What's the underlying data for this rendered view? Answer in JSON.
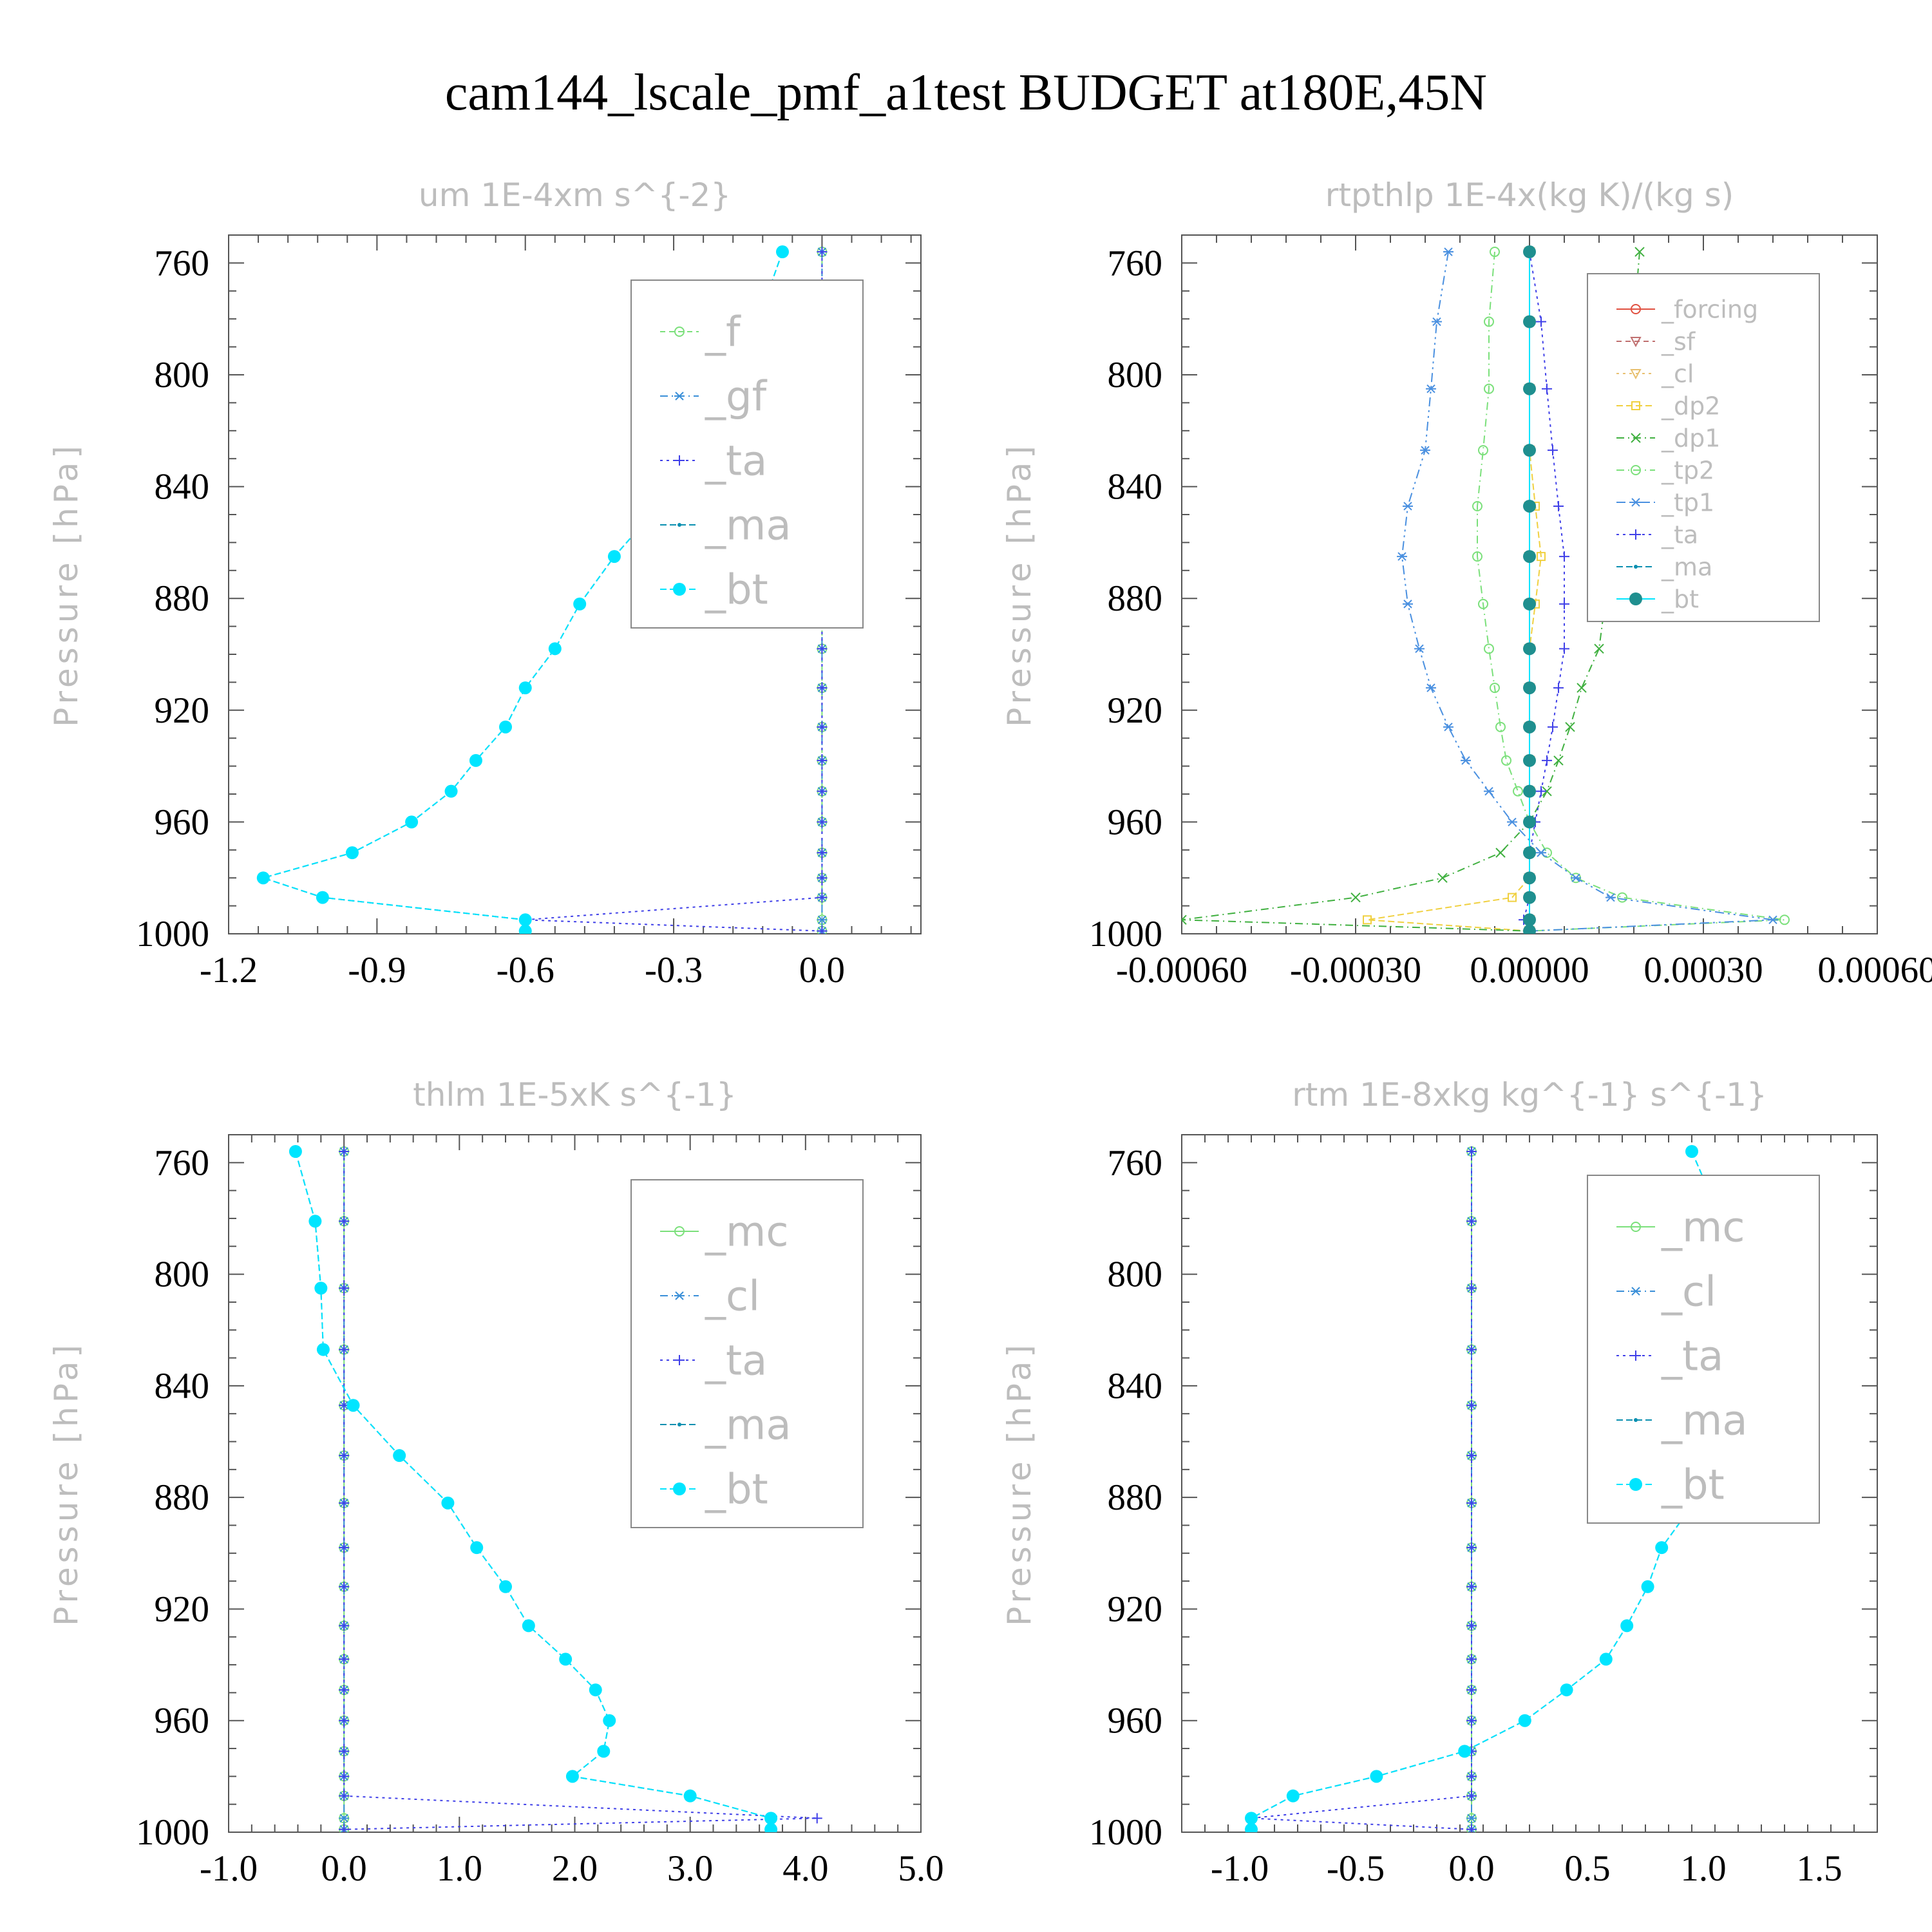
{
  "figure_title": "cam144_lscale_pmf_a1test  BUDGET at180E,45N",
  "colors": {
    "_f": "#7be07b",
    "_gf": "#3a8fd8",
    "_ta": "#4040e8",
    "_ma": "#0a8fb0",
    "_bt": "#00e5ff",
    "_mc": "#7be07b",
    "_cl": "#3a8fd8",
    "_forcing": "#e05040",
    "_sf": "#c07070",
    "_cl_rt": "#e8c070",
    "_dp2": "#f0d040",
    "_dp1": "#40b040",
    "_tp2": "#7be07b",
    "_tp1": "#4a90e0"
  },
  "chart_data": [
    {
      "type": "line",
      "title": "um   1E-4xm s^{-2}",
      "xlabel": "",
      "ylabel": "Pressure [hPa]",
      "xlim": [
        -1.2,
        0.2
      ],
      "ylim": [
        1000,
        750
      ],
      "xticks": [
        -1.2,
        -0.9,
        -0.6,
        -0.3,
        0.0
      ],
      "xtick_labels": [
        "-1.2",
        "-0.9",
        "-0.6",
        "-0.3",
        "0.0"
      ],
      "yticks": [
        760,
        800,
        840,
        880,
        920,
        960,
        1000
      ],
      "ytick_labels": [
        "760",
        "800",
        "840",
        "880",
        "920",
        "960",
        "1000"
      ],
      "legend_position": "top-right",
      "legend_font": 64,
      "pressure": [
        756,
        781,
        805,
        827,
        847,
        865,
        882,
        898,
        912,
        926,
        938,
        949,
        960,
        971,
        980,
        987,
        995,
        999
      ],
      "series": [
        {
          "name": "_f",
          "color_key": "_f",
          "values": [
            0,
            0,
            0,
            0,
            0,
            0,
            0,
            0,
            0,
            0,
            0,
            0,
            0,
            0,
            0,
            0,
            0,
            0
          ],
          "marker": "circle",
          "dash": "8 6"
        },
        {
          "name": "_gf",
          "color_key": "_gf",
          "values": [
            0,
            0,
            0,
            0,
            0,
            0,
            0,
            0,
            0,
            0,
            0,
            0,
            0,
            0,
            0,
            0,
            0,
            0
          ],
          "marker": "star",
          "dash": "12 6 2 6"
        },
        {
          "name": "_ta",
          "color_key": "_ta",
          "values": [
            0,
            0,
            0,
            0,
            0,
            0,
            0,
            0,
            0,
            0,
            0,
            0,
            0,
            0,
            0,
            0,
            -0.6,
            0
          ],
          "marker": "plus",
          "dash": "4 6"
        },
        {
          "name": "_ma",
          "color_key": "_ma",
          "values": [
            -0.08,
            -0.13,
            -0.18,
            -0.24,
            -0.33,
            -0.42,
            -0.49,
            -0.54,
            -0.6,
            -0.64,
            -0.7,
            -0.75,
            -0.83,
            -0.95,
            -1.13,
            -1.01,
            -0.6,
            -0.6
          ],
          "marker": "dot",
          "dash": "10 5"
        },
        {
          "name": "_bt",
          "color_key": "_bt",
          "values": [
            -0.08,
            -0.13,
            -0.18,
            -0.24,
            -0.33,
            -0.42,
            -0.49,
            -0.54,
            -0.6,
            -0.64,
            -0.7,
            -0.75,
            -0.83,
            -0.95,
            -1.13,
            -1.01,
            -0.6,
            -0.6
          ],
          "marker": "bigdot",
          "dash": "10 5"
        }
      ]
    },
    {
      "type": "line",
      "title": "rtpthlp   1E-4x(kg K)/(kg s)",
      "xlabel": "",
      "ylabel": "Pressure [hPa]",
      "xlim": [
        -0.0006,
        0.0006
      ],
      "ylim": [
        1000,
        750
      ],
      "xticks": [
        -0.0006,
        -0.0003,
        0.0,
        0.0003,
        0.0006
      ],
      "xtick_labels": [
        "-0.00060",
        "-0.00030",
        "0.00000",
        "0.00030",
        "0.00060"
      ],
      "yticks": [
        760,
        800,
        840,
        880,
        920,
        960,
        1000
      ],
      "ytick_labels": [
        "760",
        "800",
        "840",
        "880",
        "920",
        "960",
        "1000"
      ],
      "legend_position": "top-right",
      "legend_font": 38,
      "pressure": [
        756,
        781,
        805,
        827,
        847,
        865,
        882,
        898,
        912,
        926,
        938,
        949,
        960,
        971,
        980,
        987,
        995,
        999
      ],
      "series": [
        {
          "name": "_forcing",
          "color_key": "_forcing",
          "values": [
            0,
            0,
            0,
            0,
            0,
            0,
            0,
            0,
            0,
            0,
            0,
            0,
            0,
            0,
            0,
            0,
            0,
            0
          ],
          "marker": "circle",
          "dash": ""
        },
        {
          "name": "_sf",
          "color_key": "_sf",
          "values": [
            0,
            0,
            0,
            0,
            0,
            0,
            0,
            0,
            0,
            0,
            0,
            0,
            0,
            0,
            0,
            0,
            0,
            0
          ],
          "marker": "tri",
          "dash": "8 6"
        },
        {
          "name": "_cl",
          "color_key": "_cl_rt",
          "values": [
            0,
            0,
            0,
            0,
            0,
            0,
            0,
            0,
            0,
            0,
            0,
            0,
            0,
            0,
            0,
            0,
            0,
            0
          ],
          "marker": "tri",
          "dash": "4 6"
        },
        {
          "name": "_dp2",
          "color_key": "_dp2",
          "values": [
            0,
            0,
            0,
            0,
            1e-05,
            2e-05,
            1e-05,
            0,
            0,
            0,
            0,
            0,
            0,
            0,
            0,
            -3e-05,
            -0.00028,
            0
          ],
          "marker": "square",
          "dash": "10 5"
        },
        {
          "name": "_dp1",
          "color_key": "_dp1",
          "values": [
            0.00019,
            0.00018,
            0.00017,
            0.00018,
            0.00017,
            0.00015,
            0.00013,
            0.00012,
            9e-05,
            7e-05,
            5e-05,
            3e-05,
            0.0,
            -5e-05,
            -0.00015,
            -0.0003,
            -0.0006,
            0
          ],
          "marker": "x",
          "dash": "12 6 2 6"
        },
        {
          "name": "_tp2",
          "color_key": "_tp2",
          "values": [
            -6e-05,
            -7e-05,
            -7e-05,
            -8e-05,
            -9e-05,
            -9e-05,
            -8e-05,
            -7e-05,
            -6e-05,
            -5e-05,
            -4e-05,
            -2e-05,
            0.0,
            3e-05,
            8e-05,
            0.00016,
            0.00044,
            0
          ],
          "marker": "circle",
          "dash": "12 6 2 6"
        },
        {
          "name": "_tp1",
          "color_key": "_tp1",
          "values": [
            -0.00014,
            -0.00016,
            -0.00017,
            -0.00018,
            -0.00021,
            -0.00022,
            -0.00021,
            -0.00019,
            -0.00017,
            -0.00014,
            -0.00011,
            -7e-05,
            -3e-05,
            2e-05,
            8e-05,
            0.00014,
            0.00042,
            0
          ],
          "marker": "star",
          "dash": "14 6 3 6 3 6"
        },
        {
          "name": "_ta",
          "color_key": "_ta",
          "values": [
            0,
            2e-05,
            3e-05,
            4e-05,
            5e-05,
            6e-05,
            6e-05,
            6e-05,
            5e-05,
            4e-05,
            3e-05,
            2e-05,
            1e-05,
            0,
            0,
            0,
            -1e-05,
            0
          ],
          "marker": "plus",
          "dash": "4 6"
        },
        {
          "name": "_ma",
          "color_key": "_ma",
          "values": [
            0,
            0,
            0,
            0,
            0,
            0,
            0,
            0,
            0,
            0,
            0,
            0,
            0,
            0,
            0,
            0,
            0,
            0
          ],
          "marker": "dot",
          "dash": "10 5"
        },
        {
          "name": "_bt",
          "color_key": "_bt",
          "values": [
            0,
            0,
            0,
            0,
            0,
            0,
            0,
            0,
            0,
            0,
            0,
            0,
            0,
            0,
            0,
            0,
            0,
            0
          ],
          "marker": "bigdot-dark",
          "dash": ""
        }
      ]
    },
    {
      "type": "line",
      "title": "thlm   1E-5xK s^{-1}",
      "xlabel": "",
      "ylabel": "Pressure [hPa]",
      "xlim": [
        -1.0,
        5.0
      ],
      "ylim": [
        1000,
        750
      ],
      "xticks": [
        -1.0,
        0.0,
        1.0,
        2.0,
        3.0,
        4.0,
        5.0
      ],
      "xtick_labels": [
        "-1.0",
        "0.0",
        "1.0",
        "2.0",
        "3.0",
        "4.0",
        "5.0"
      ],
      "yticks": [
        760,
        800,
        840,
        880,
        920,
        960,
        1000
      ],
      "ytick_labels": [
        "760",
        "800",
        "840",
        "880",
        "920",
        "960",
        "1000"
      ],
      "legend_position": "top-right",
      "legend_font": 64,
      "pressure": [
        756,
        781,
        805,
        827,
        847,
        865,
        882,
        898,
        912,
        926,
        938,
        949,
        960,
        971,
        980,
        987,
        995,
        999
      ],
      "series": [
        {
          "name": "_mc",
          "color_key": "_mc",
          "values": [
            0,
            0,
            0,
            0,
            0,
            0,
            0,
            0,
            0,
            0,
            0,
            0,
            0,
            0,
            0,
            0,
            0,
            0
          ],
          "marker": "circle",
          "dash": ""
        },
        {
          "name": "_cl",
          "color_key": "_cl",
          "values": [
            0,
            0,
            0,
            0,
            0,
            0,
            0,
            0,
            0,
            0,
            0,
            0,
            0,
            0,
            0,
            0,
            0,
            0
          ],
          "marker": "star",
          "dash": "12 6 2 6"
        },
        {
          "name": "_ta",
          "color_key": "_ta",
          "values": [
            0,
            0,
            0,
            0,
            0,
            0,
            0,
            0,
            0,
            0,
            0,
            0,
            0,
            0,
            0,
            0,
            4.1,
            0
          ],
          "marker": "plus",
          "dash": "4 6"
        },
        {
          "name": "_ma",
          "color_key": "_ma",
          "values": [
            -0.42,
            -0.25,
            -0.2,
            -0.18,
            0.08,
            0.48,
            0.9,
            1.15,
            1.4,
            1.6,
            1.92,
            2.18,
            2.3,
            2.25,
            1.98,
            3.0,
            3.7,
            3.7
          ],
          "marker": "dot",
          "dash": "10 5"
        },
        {
          "name": "_bt",
          "color_key": "_bt",
          "values": [
            -0.42,
            -0.25,
            -0.2,
            -0.18,
            0.08,
            0.48,
            0.9,
            1.15,
            1.4,
            1.6,
            1.92,
            2.18,
            2.3,
            2.25,
            1.98,
            3.0,
            3.7,
            3.7
          ],
          "marker": "bigdot",
          "dash": "10 5"
        }
      ]
    },
    {
      "type": "line",
      "title": "rtm   1E-8xkg kg^{-1} s^{-1}",
      "xlabel": "",
      "ylabel": "Pressure [hPa]",
      "xlim": [
        -1.25,
        1.75
      ],
      "ylim": [
        1000,
        750
      ],
      "xticks": [
        -1.0,
        -0.5,
        0.0,
        0.5,
        1.0,
        1.5
      ],
      "xtick_labels": [
        "-1.0",
        "-0.5",
        "0.0",
        "0.5",
        "1.0",
        "1.5"
      ],
      "yticks": [
        760,
        800,
        840,
        880,
        920,
        960,
        1000
      ],
      "ytick_labels": [
        "760",
        "800",
        "840",
        "880",
        "920",
        "960",
        "1000"
      ],
      "legend_position": "top-right",
      "legend_font": 64,
      "pressure": [
        756,
        781,
        805,
        827,
        847,
        865,
        882,
        898,
        912,
        926,
        938,
        949,
        960,
        971,
        980,
        987,
        995,
        999
      ],
      "series": [
        {
          "name": "_mc",
          "color_key": "_mc",
          "values": [
            0,
            0,
            0,
            0,
            0,
            0,
            0,
            0,
            0,
            0,
            0,
            0,
            0,
            0,
            0,
            0,
            0,
            0
          ],
          "marker": "circle",
          "dash": ""
        },
        {
          "name": "_cl",
          "color_key": "_cl",
          "values": [
            0,
            0,
            0,
            0,
            0,
            0,
            0,
            0,
            0,
            0,
            0,
            0,
            0,
            0,
            0,
            0,
            0,
            0
          ],
          "marker": "star",
          "dash": "12 6 2 6"
        },
        {
          "name": "_ta",
          "color_key": "_ta",
          "values": [
            0,
            0,
            0,
            0,
            0,
            0,
            0,
            0,
            0,
            0,
            0,
            0,
            0,
            0,
            0,
            0,
            -0.95,
            0
          ],
          "marker": "plus",
          "dash": "4 6"
        },
        {
          "name": "_ma",
          "color_key": "_ma",
          "values": [
            0.95,
            1.08,
            1.12,
            1.22,
            1.33,
            1.18,
            0.96,
            0.82,
            0.76,
            0.67,
            0.58,
            0.41,
            0.23,
            -0.03,
            -0.41,
            -0.77,
            -0.95,
            -0.95
          ],
          "marker": "dot",
          "dash": "10 5"
        },
        {
          "name": "_bt",
          "color_key": "_bt",
          "values": [
            0.95,
            1.08,
            1.12,
            1.22,
            1.33,
            1.18,
            0.96,
            0.82,
            0.76,
            0.67,
            0.58,
            0.41,
            0.23,
            -0.03,
            -0.41,
            -0.77,
            -0.95,
            -0.95
          ],
          "marker": "bigdot",
          "dash": "10 5"
        }
      ]
    }
  ]
}
